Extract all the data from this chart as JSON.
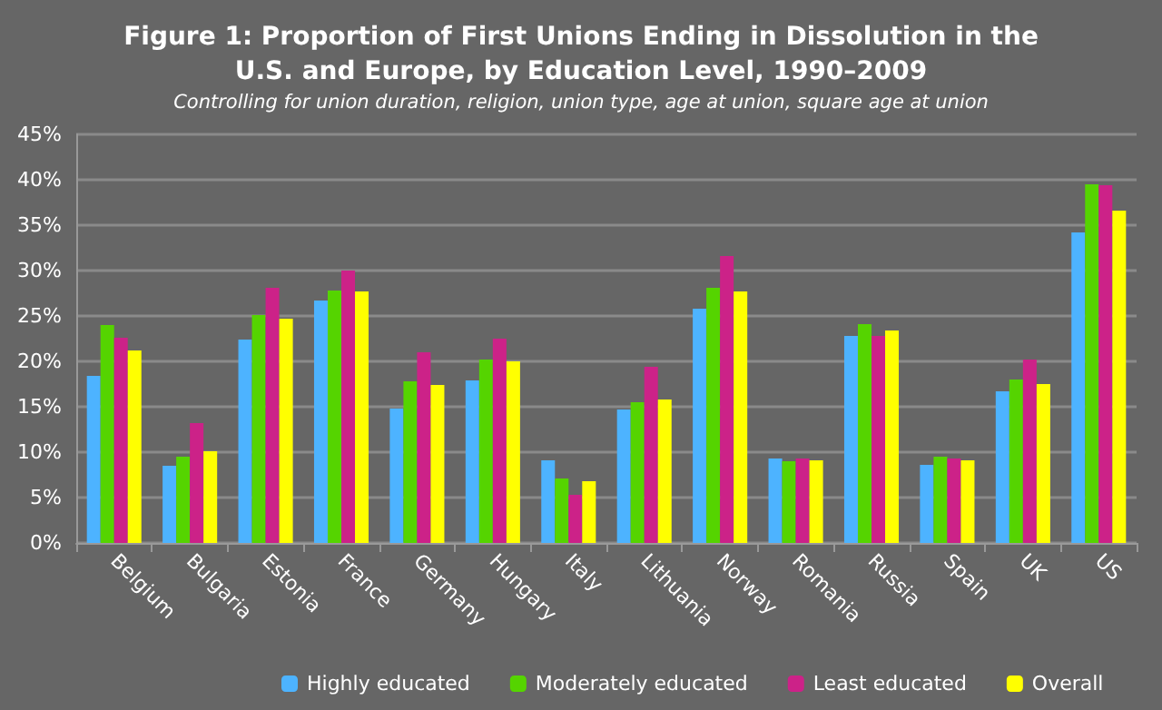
{
  "chart_data": {
    "type": "bar",
    "title": "Figure 1: Proportion of First Unions Ending in Dissolution in the\nU.S. and Europe, by Education Level, 1990–2009",
    "subtitle": "Controlling for union duration, religion, union type, age at union, square age at union",
    "categories": [
      "Belgium",
      "Bulgaria",
      "Estonia",
      "France",
      "Germany",
      "Hungary",
      "Italy",
      "Lithuania",
      "Norway",
      "Romania",
      "Russia",
      "Spain",
      "UK",
      "US"
    ],
    "series": [
      {
        "name": "Highly educated",
        "color": "#4db3ff",
        "values": [
          18.4,
          8.5,
          22.4,
          26.7,
          14.8,
          17.9,
          9.1,
          14.7,
          25.8,
          9.3,
          22.8,
          8.6,
          16.7,
          34.2
        ]
      },
      {
        "name": "Moderately educated",
        "color": "#55d400",
        "values": [
          24,
          9.5,
          25.1,
          27.8,
          17.8,
          20.2,
          7.1,
          15.5,
          28.1,
          9.0,
          24.1,
          9.5,
          18.0,
          39.5
        ]
      },
      {
        "name": "Least educated",
        "color": "#cc2288",
        "values": [
          22.6,
          13.2,
          28.1,
          30.0,
          21.0,
          22.5,
          5.3,
          19.4,
          31.6,
          9.3,
          22.8,
          9.3,
          20.2,
          39.4
        ]
      },
      {
        "name": "Overall",
        "color": "#ffff00",
        "values": [
          21.2,
          10.1,
          24.7,
          27.7,
          17.4,
          20.0,
          6.8,
          15.8,
          27.7,
          9.1,
          23.4,
          9.1,
          17.5,
          36.6
        ]
      }
    ],
    "ylim": [
      0,
      45
    ],
    "yticks": [
      {
        "value": 0,
        "label": "0%"
      },
      {
        "value": 5,
        "label": "5%"
      },
      {
        "value": 10,
        "label": "10%"
      },
      {
        "value": 15,
        "label": "15%"
      },
      {
        "value": 20,
        "label": "20%"
      },
      {
        "value": 25,
        "label": "25%"
      },
      {
        "value": 30,
        "label": "30%"
      },
      {
        "value": 35,
        "label": "35%"
      },
      {
        "value": 40,
        "label": "40%"
      },
      {
        "value": 45,
        "label": "45%"
      }
    ],
    "grid": "y",
    "legend": "bottom"
  }
}
